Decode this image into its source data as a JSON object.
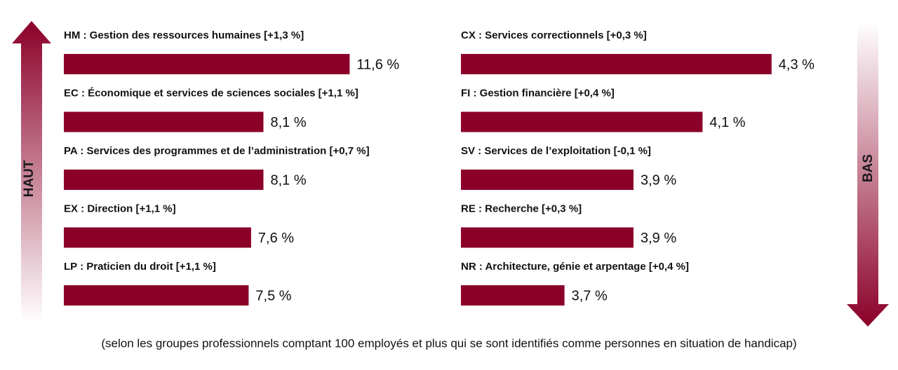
{
  "chart_data": [
    {
      "type": "bar",
      "orientation": "horizontal",
      "side_label": "HAUT",
      "color": "#8b0029",
      "categories": [
        "HM : Gestion des ressources humaines [+1,3 %]",
        "EC : Économique et services de sciences sociales [+1,1 %]",
        "PA : Services des programmes et de l’administration [+0,7 %]",
        "EX : Direction [+1,1 %]",
        "LP : Praticien du droit [+1,1 %]"
      ],
      "values": [
        11.6,
        8.1,
        8.1,
        7.6,
        7.5
      ],
      "value_labels": [
        "11,6 %",
        "8,1 %",
        "8,1 %",
        "7,6 %",
        "7,5 %"
      ],
      "xlim": [
        0,
        12.5
      ]
    },
    {
      "type": "bar",
      "orientation": "horizontal",
      "side_label": "BAS",
      "color": "#8b0029",
      "categories": [
        "CX : Services correctionnels [+0,3 %]",
        "FI : Gestion financière [+0,4 %]",
        "SV : Services de l’exploitation [-0,1 %]",
        "RE : Recherche [+0,3 %]",
        "NR : Architecture, génie et arpentage [+0,4 %]"
      ],
      "values": [
        4.3,
        4.1,
        3.9,
        3.9,
        3.7
      ],
      "value_labels": [
        "4,3 %",
        "4,1 %",
        "3,9 %",
        "3,9 %",
        "3,7 %"
      ],
      "xlim": [
        3.4,
        4.4
      ]
    }
  ],
  "footnote": "(selon les groupes professionnels comptant 100 employés et plus qui se sont identifiés comme personnes en situation de handicap)"
}
